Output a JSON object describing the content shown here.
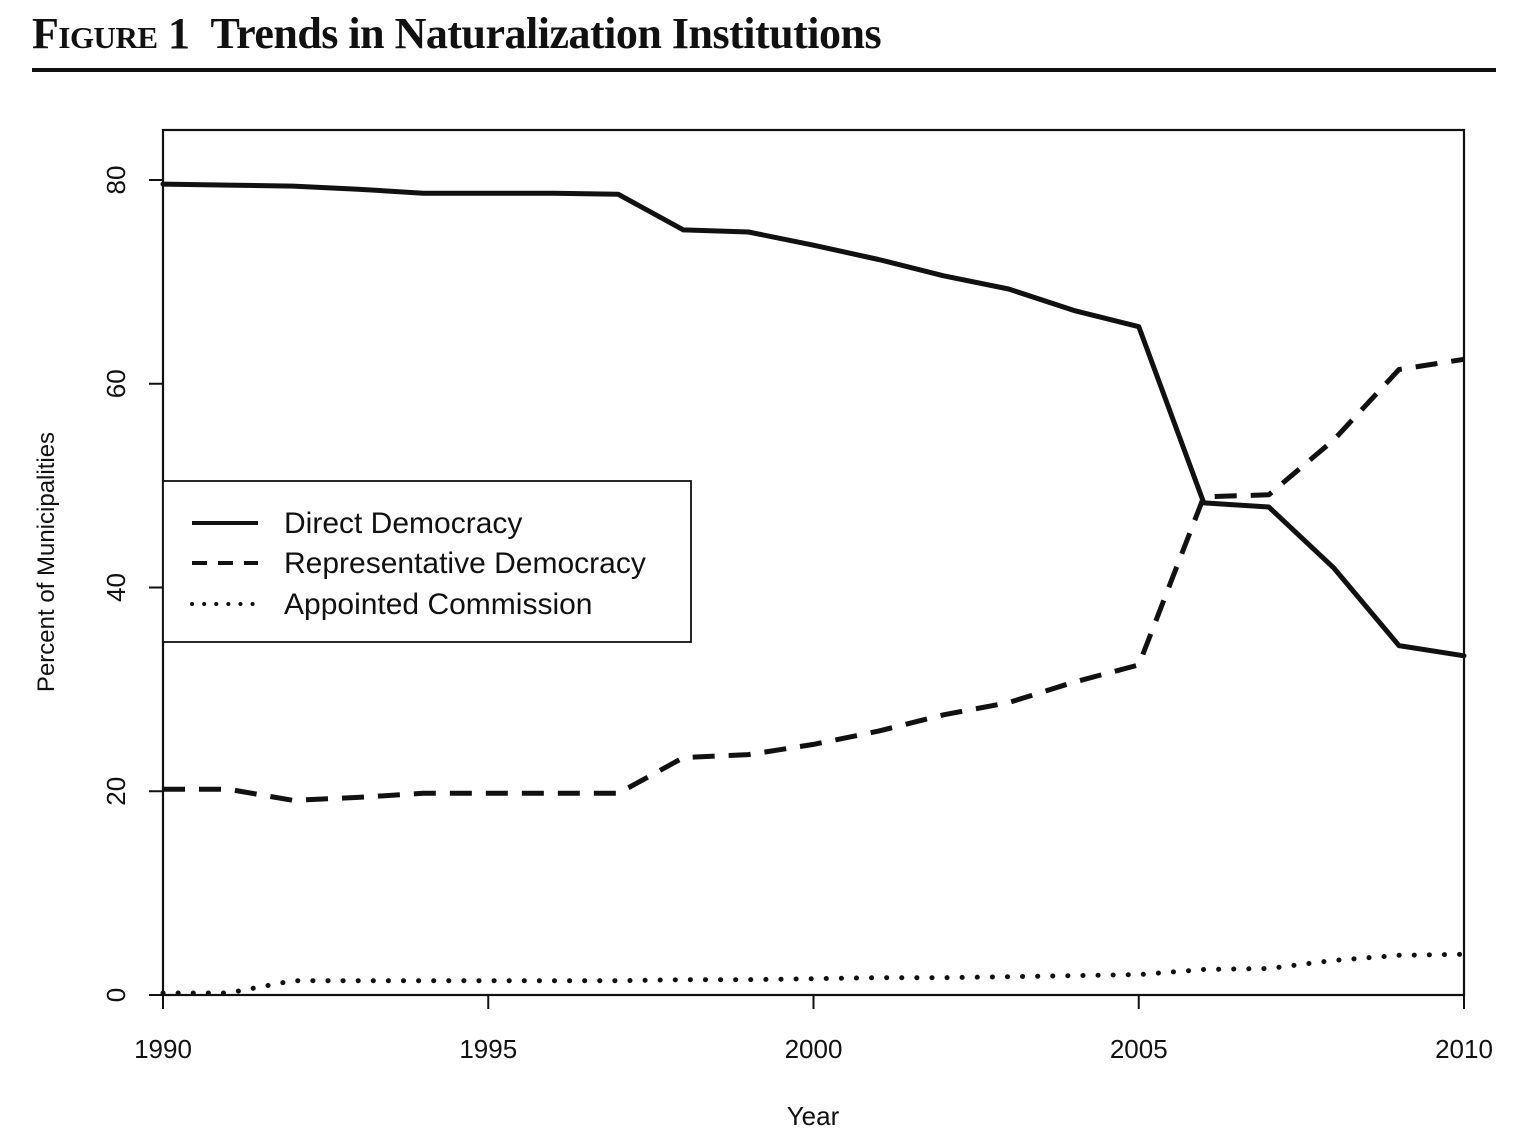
{
  "figure": {
    "label": "Figure 1",
    "title": "Trends in Naturalization Institutions"
  },
  "chart_data": {
    "type": "line",
    "title": "Trends in Naturalization Institutions",
    "xlabel": "Year",
    "ylabel": "Percent of Municipalities",
    "xlim": [
      1990,
      2010
    ],
    "ylim": [
      0,
      85
    ],
    "xticks": [
      1990,
      1995,
      2000,
      2005,
      2010
    ],
    "yticks": [
      0,
      20,
      40,
      60,
      80
    ],
    "grid": false,
    "legend_position": "center-left",
    "x": [
      1990,
      1991,
      1992,
      1993,
      1994,
      1995,
      1996,
      1997,
      1998,
      1999,
      2000,
      2001,
      2002,
      2003,
      2004,
      2005,
      2006,
      2007,
      2008,
      2009,
      2010
    ],
    "series": [
      {
        "name": "Direct Democracy",
        "style": "solid",
        "color": "#111111",
        "values": [
          79.6,
          79.5,
          79.4,
          79.1,
          78.7,
          78.7,
          78.7,
          78.6,
          75.1,
          74.9,
          73.6,
          72.2,
          70.6,
          69.3,
          67.2,
          65.6,
          48.3,
          47.9,
          41.9,
          34.3,
          33.3
        ]
      },
      {
        "name": "Representative Democracy",
        "style": "dashed",
        "color": "#111111",
        "values": [
          20.2,
          20.2,
          19.1,
          19.4,
          19.8,
          19.8,
          19.8,
          19.8,
          23.3,
          23.6,
          24.6,
          25.9,
          27.5,
          28.7,
          30.7,
          32.4,
          48.9,
          49.1,
          54.5,
          61.4,
          62.4
        ]
      },
      {
        "name": "Appointed Commission",
        "style": "dotted",
        "color": "#111111",
        "values": [
          0.2,
          0.2,
          1.4,
          1.4,
          1.4,
          1.4,
          1.4,
          1.4,
          1.5,
          1.5,
          1.6,
          1.7,
          1.7,
          1.8,
          1.9,
          2.0,
          2.5,
          2.6,
          3.4,
          3.9,
          4.0
        ]
      }
    ]
  }
}
